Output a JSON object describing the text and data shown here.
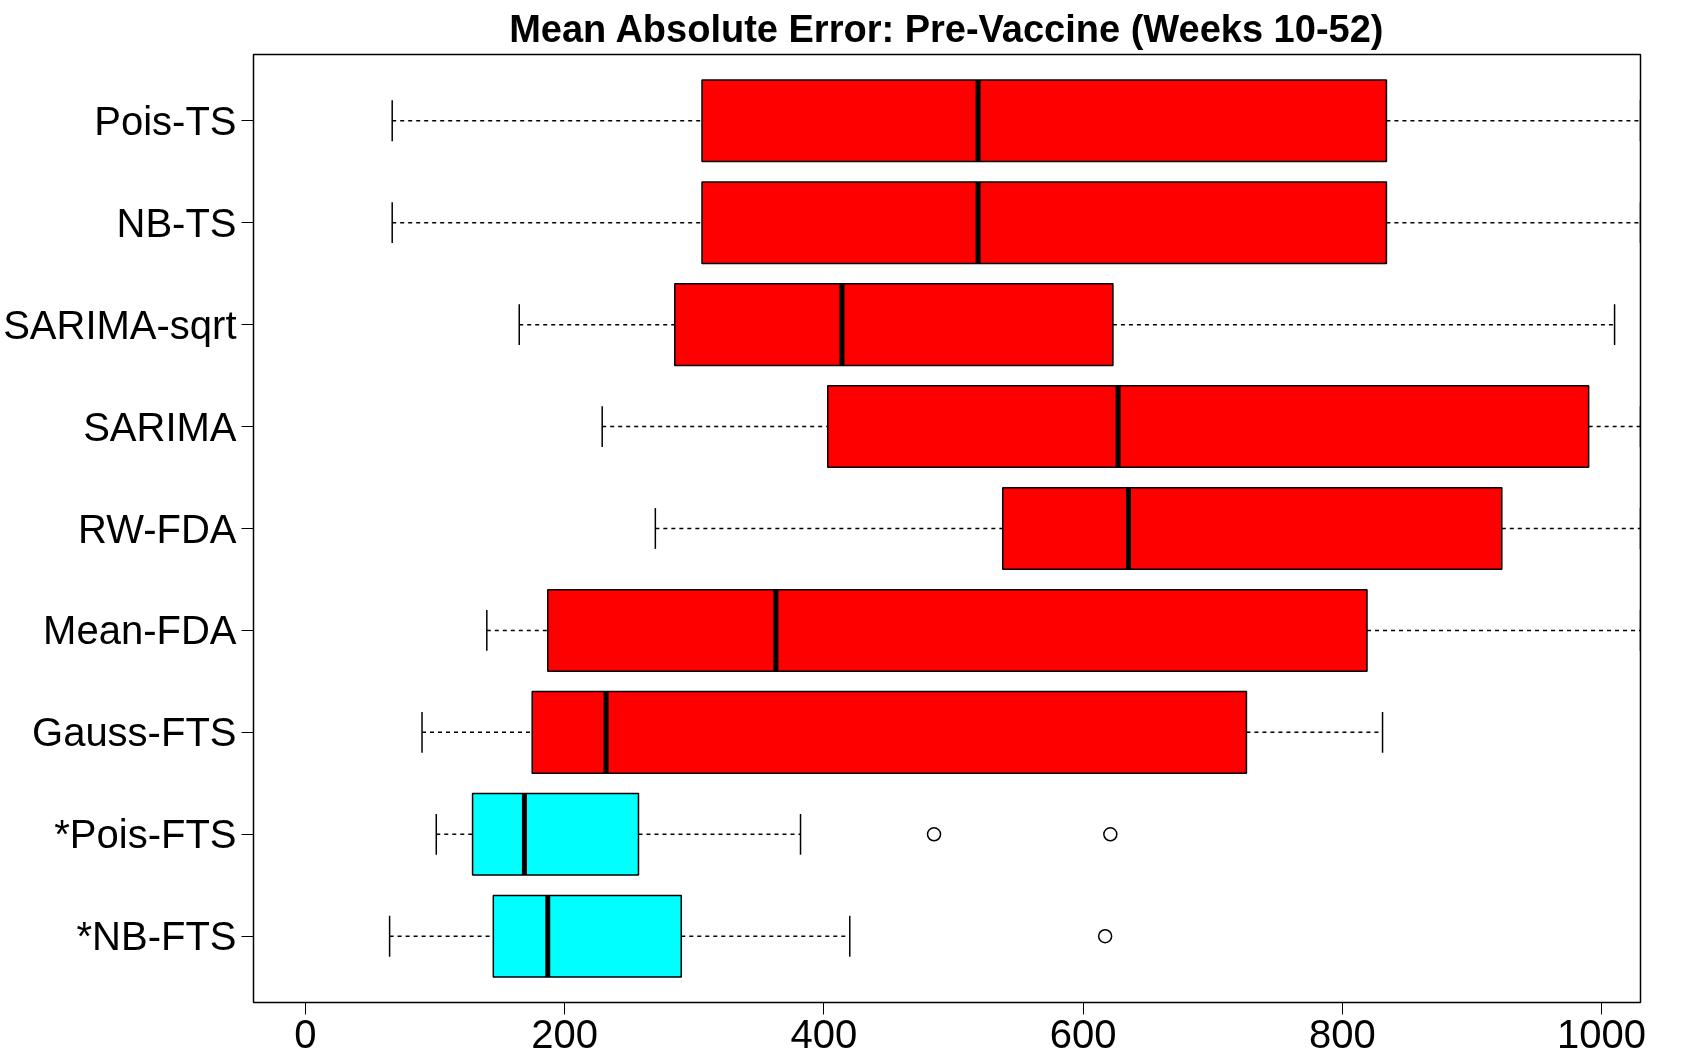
{
  "chart_data": {
    "type": "box",
    "orientation": "horizontal",
    "title": "Mean Absolute Error: Pre-Vaccine (Weeks 10-52)",
    "categories": [
      "Pois-TS",
      "NB-TS",
      "SARIMA-sqrt",
      "SARIMA",
      "RW-FDA",
      "Mean-FDA",
      "Gauss-FTS",
      "*Pois-FTS",
      "*NB-FTS"
    ],
    "colors": [
      "#ff0000",
      "#ff0000",
      "#ff0000",
      "#ff0000",
      "#ff0000",
      "#ff0000",
      "#ff0000",
      "#00ffff",
      "#00ffff"
    ],
    "boxes": [
      {
        "low": 67,
        "q1": 306,
        "median": 519,
        "q3": 834,
        "high": 1030
      },
      {
        "low": 67,
        "q1": 306,
        "median": 519,
        "q3": 834,
        "high": 1030
      },
      {
        "low": 165,
        "q1": 285,
        "median": 414,
        "q3": 623,
        "high": 1010
      },
      {
        "low": 229,
        "q1": 403,
        "median": 627,
        "q3": 990,
        "high": 1030
      },
      {
        "low": 270,
        "q1": 538,
        "median": 635,
        "q3": 923,
        "high": 1030
      },
      {
        "low": 140,
        "q1": 187,
        "median": 363,
        "q3": 819,
        "high": 1030
      },
      {
        "low": 90,
        "q1": 175,
        "median": 232,
        "q3": 726,
        "high": 831
      },
      {
        "low": 101,
        "q1": 129,
        "median": 169,
        "q3": 257,
        "high": 382,
        "outliers": [
          485,
          621
        ]
      },
      {
        "low": 65,
        "q1": 145,
        "median": 187,
        "q3": 290,
        "high": 420,
        "outliers": [
          617
        ]
      }
    ],
    "xlim": [
      -40,
      1030
    ],
    "xticks": [
      0,
      200,
      400,
      600,
      800,
      1000
    ],
    "line_style": "dashed",
    "grid": false
  }
}
